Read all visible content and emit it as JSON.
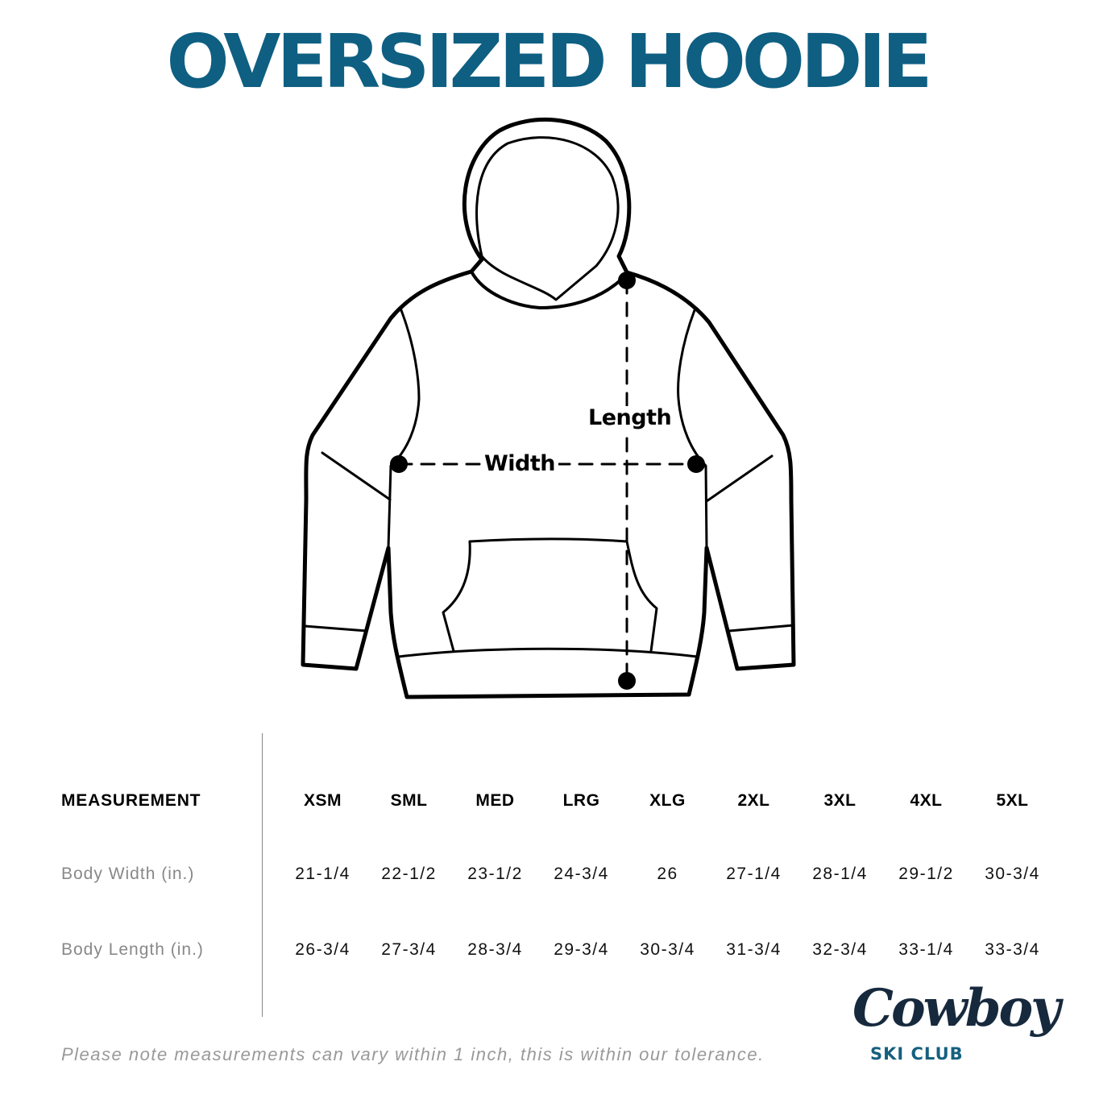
{
  "title": "OVERSIZED HOODIE",
  "diagram": {
    "width_label": "Width",
    "length_label": "Length"
  },
  "table": {
    "header_label": "MEASUREMENT",
    "sizes": [
      "XSM",
      "SML",
      "MED",
      "LRG",
      "XLG",
      "2XL",
      "3XL",
      "4XL",
      "5XL"
    ],
    "rows": [
      {
        "label": "Body Width (in.)",
        "values": [
          "21-1/4",
          "22-1/2",
          "23-1/2",
          "24-3/4",
          "26",
          "27-1/4",
          "28-1/4",
          "29-1/2",
          "30-3/4"
        ]
      },
      {
        "label": "Body Length (in.)",
        "values": [
          "26-3/4",
          "27-3/4",
          "28-3/4",
          "29-3/4",
          "30-3/4",
          "31-3/4",
          "32-3/4",
          "33-1/4",
          "33-3/4"
        ]
      }
    ]
  },
  "note": "Please note measurements can vary within 1 inch, this is within our tolerance.",
  "logo": {
    "script": "Cowboy",
    "subtitle": "SKI CLUB"
  },
  "colors": {
    "title": "#0e5f82",
    "logo_dark": "#17293d",
    "logo_blue": "#15607f"
  }
}
